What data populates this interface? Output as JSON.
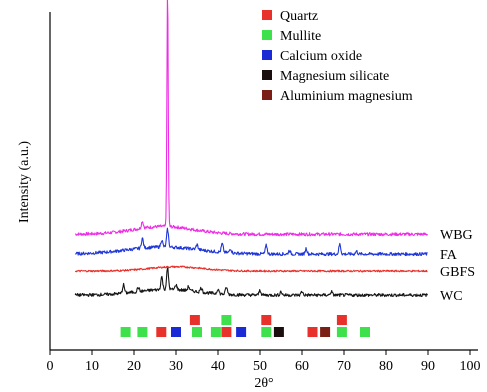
{
  "chart_data": {
    "type": "line",
    "title": "",
    "xlabel": "2θ°",
    "ylabel": "Intensity (a.u.)",
    "xlim": [
      0,
      100
    ],
    "xticks": [
      0,
      10,
      20,
      30,
      40,
      50,
      60,
      70,
      80,
      90,
      100
    ],
    "y_ticks_shown": false,
    "grid": false,
    "legend": {
      "placement": "top-right",
      "entries": [
        {
          "name": "Quartz",
          "color": "#e8312a"
        },
        {
          "name": "Mullite",
          "color": "#3ee04b"
        },
        {
          "name": "Calcium oxide",
          "color": "#1a2bd6"
        },
        {
          "name": "Magnesium silicate",
          "color": "#1a0e0e"
        },
        {
          "name": "Aluminium magnesium",
          "color": "#7b1f16"
        }
      ]
    },
    "series": [
      {
        "name": "WBG",
        "color": "#ee2ee6",
        "baseline": 1.0,
        "x_range": [
          6,
          90
        ],
        "hump": {
          "center": 27,
          "width": 10,
          "height": 0.11
        },
        "peaks": [
          {
            "x": 22,
            "height": 0.1
          },
          {
            "x": 28.0,
            "height": 3.35
          }
        ]
      },
      {
        "name": "FA",
        "color": "#1f37d8",
        "baseline": 0.72,
        "x_range": [
          6,
          90
        ],
        "hump": {
          "center": 27,
          "width": 12,
          "height": 0.1
        },
        "peaks": [
          {
            "x": 22,
            "height": 0.14
          },
          {
            "x": 26.6,
            "height": 0.1
          },
          {
            "x": 28.0,
            "height": 0.25
          },
          {
            "x": 35,
            "height": 0.07
          },
          {
            "x": 41,
            "height": 0.12
          },
          {
            "x": 43,
            "height": 0.06
          },
          {
            "x": 51.5,
            "height": 0.12
          },
          {
            "x": 57,
            "height": 0.05
          },
          {
            "x": 61,
            "height": 0.08
          },
          {
            "x": 69,
            "height": 0.14
          },
          {
            "x": 73,
            "height": 0.04
          }
        ]
      },
      {
        "name": "GBFS",
        "color": "#e8312a",
        "baseline": 0.48,
        "x_range": [
          6,
          90
        ],
        "hump": {
          "center": 30,
          "width": 9,
          "height": 0.06
        },
        "peaks": []
      },
      {
        "name": "WC",
        "color": "#161616",
        "baseline": 0.14,
        "x_range": [
          6,
          90
        ],
        "hump": {
          "center": 28,
          "width": 10,
          "height": 0.08
        },
        "peaks": [
          {
            "x": 17.5,
            "height": 0.12
          },
          {
            "x": 21,
            "height": 0.06
          },
          {
            "x": 26.6,
            "height": 0.18
          },
          {
            "x": 28.0,
            "height": 0.3
          },
          {
            "x": 30,
            "height": 0.07
          },
          {
            "x": 33,
            "height": 0.06
          },
          {
            "x": 36,
            "height": 0.06
          },
          {
            "x": 40,
            "height": 0.07
          },
          {
            "x": 42,
            "height": 0.1
          },
          {
            "x": 50,
            "height": 0.07
          },
          {
            "x": 55,
            "height": 0.05
          },
          {
            "x": 60,
            "height": 0.05
          },
          {
            "x": 67,
            "height": 0.05
          }
        ]
      }
    ],
    "phase_markers": [
      {
        "x": 18,
        "phase": "Mullite",
        "row": 0
      },
      {
        "x": 22,
        "phase": "Mullite",
        "row": 0
      },
      {
        "x": 26.5,
        "phase": "Quartz",
        "row": 0
      },
      {
        "x": 30,
        "phase": "Calcium oxide",
        "row": 0
      },
      {
        "x": 34.5,
        "phase": "Quartz",
        "row": 1
      },
      {
        "x": 35,
        "phase": "Mullite",
        "row": 0
      },
      {
        "x": 39.5,
        "phase": "Mullite",
        "row": 0
      },
      {
        "x": 42,
        "phase": "Mullite",
        "row": 1
      },
      {
        "x": 42,
        "phase": "Quartz",
        "row": 0
      },
      {
        "x": 45.5,
        "phase": "Calcium oxide",
        "row": 0
      },
      {
        "x": 51.5,
        "phase": "Quartz",
        "row": 1
      },
      {
        "x": 51.5,
        "phase": "Mullite",
        "row": 0
      },
      {
        "x": 54.5,
        "phase": "Magnesium silicate",
        "row": 0
      },
      {
        "x": 62.5,
        "phase": "Quartz",
        "row": 0
      },
      {
        "x": 65.5,
        "phase": "Aluminium magnesium",
        "row": 0
      },
      {
        "x": 69.5,
        "phase": "Quartz",
        "row": 1
      },
      {
        "x": 69.5,
        "phase": "Mullite",
        "row": 0
      },
      {
        "x": 75,
        "phase": "Mullite",
        "row": 0
      }
    ]
  }
}
